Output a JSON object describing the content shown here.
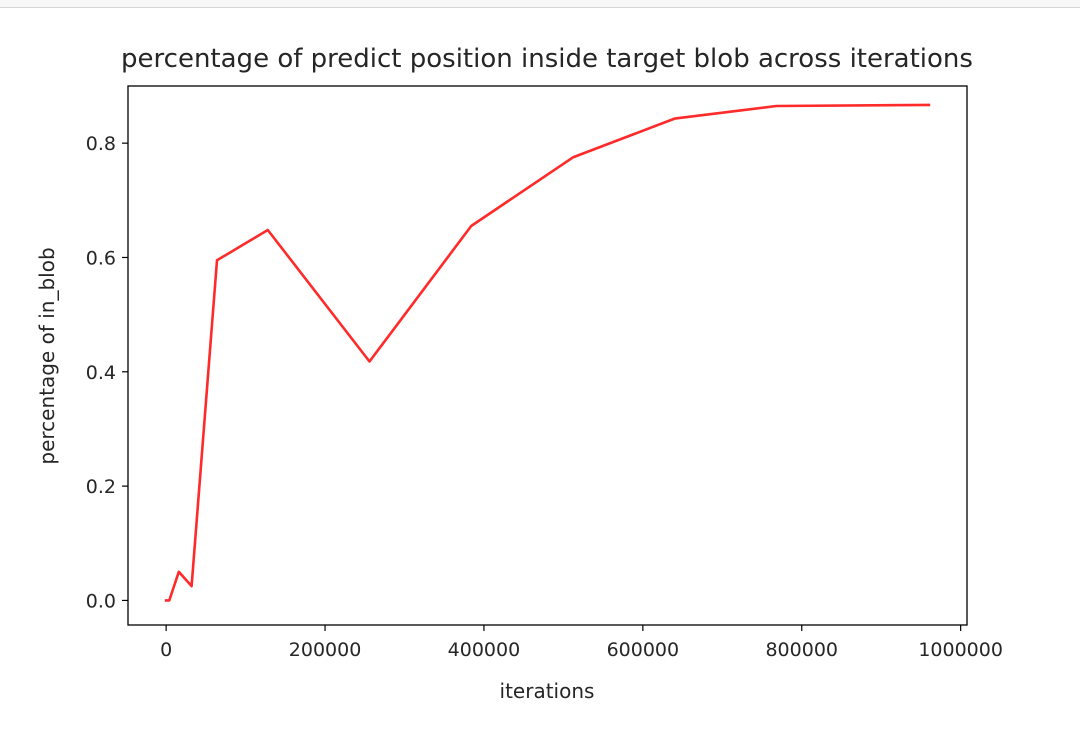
{
  "chart_data": {
    "type": "line",
    "title": "percentage of predict position inside target blob across iterations",
    "xlabel": "iterations",
    "ylabel": "percentage of in_blob",
    "xlim": [
      -48000,
      1008000
    ],
    "ylim": [
      -0.043,
      0.9
    ],
    "xticks": [
      0,
      200000,
      400000,
      600000,
      800000,
      1000000
    ],
    "xtick_labels": [
      "0",
      "200000",
      "400000",
      "600000",
      "800000",
      "1000000"
    ],
    "yticks": [
      0.0,
      0.2,
      0.4,
      0.6,
      0.8
    ],
    "ytick_labels": [
      "0.0",
      "0.2",
      "0.4",
      "0.6",
      "0.8"
    ],
    "grid": false,
    "series": [
      {
        "color": "#ff2a2a",
        "x": [
          0,
          4000,
          16000,
          32000,
          64000,
          128000,
          256000,
          384000,
          512000,
          640000,
          768000,
          960000
        ],
        "y": [
          0.0,
          0.0,
          0.05,
          0.025,
          0.595,
          0.648,
          0.418,
          0.655,
          0.775,
          0.843,
          0.865,
          0.867
        ]
      }
    ]
  }
}
